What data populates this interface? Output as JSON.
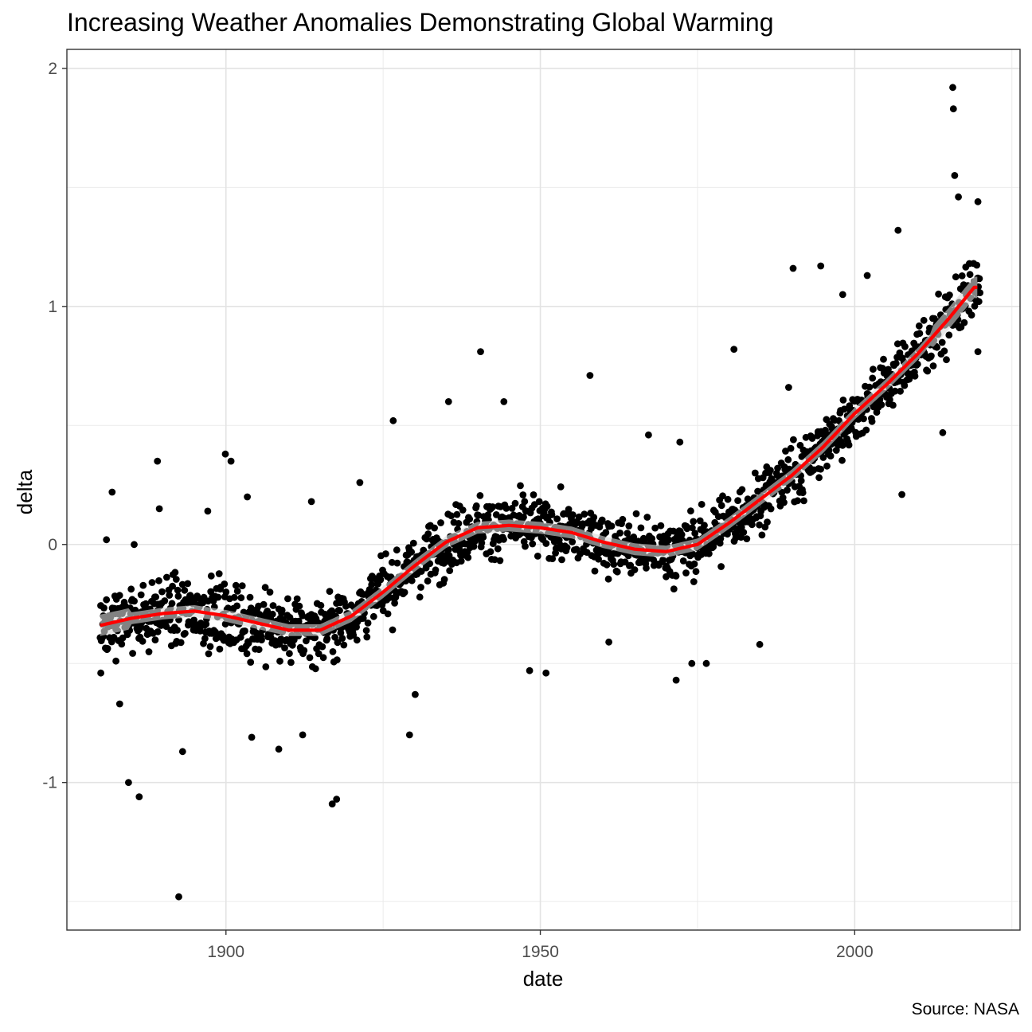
{
  "chart_data": {
    "type": "scatter",
    "title": "Increasing Weather Anomalies Demonstrating Global Warming",
    "xlabel": "date",
    "ylabel": "delta",
    "caption": "Source: NASA",
    "xlim": [
      1874.7,
      2026.3
    ],
    "ylim": [
      -1.62,
      2.08
    ],
    "x_ticks": [
      1900,
      1950,
      2000
    ],
    "x_tick_labels": [
      "1900",
      "1950",
      "2000"
    ],
    "y_ticks": [
      -1,
      0,
      1,
      2
    ],
    "y_tick_labels": [
      "-1",
      "0",
      "1",
      "2"
    ],
    "grid": true,
    "point_color": "#000000",
    "smooth_color": "#ff0000",
    "smooth_band_color": "#d9d9d9",
    "smooth_trend": {
      "x": [
        1880,
        1885,
        1890,
        1895,
        1900,
        1905,
        1910,
        1915,
        1920,
        1925,
        1930,
        1935,
        1940,
        1945,
        1950,
        1955,
        1960,
        1965,
        1970,
        1975,
        1980,
        1985,
        1990,
        1995,
        2000,
        2005,
        2010,
        2015,
        2019
      ],
      "y": [
        -0.34,
        -0.31,
        -0.29,
        -0.28,
        -0.3,
        -0.33,
        -0.36,
        -0.36,
        -0.3,
        -0.2,
        -0.09,
        0.01,
        0.07,
        0.08,
        0.07,
        0.05,
        0.01,
        -0.02,
        -0.03,
        0.0,
        0.09,
        0.19,
        0.29,
        0.41,
        0.55,
        0.67,
        0.8,
        0.95,
        1.08
      ]
    },
    "data_samples": [
      {
        "x": 1880.1,
        "y": -0.54
      },
      {
        "x": 1880.5,
        "y": -0.3
      },
      {
        "x": 1881.0,
        "y": 0.02
      },
      {
        "x": 1881.9,
        "y": 0.22
      },
      {
        "x": 1882.5,
        "y": -0.49
      },
      {
        "x": 1883.1,
        "y": -0.67
      },
      {
        "x": 1884.5,
        "y": -1.0
      },
      {
        "x": 1885.4,
        "y": 0.0
      },
      {
        "x": 1886.2,
        "y": -1.06
      },
      {
        "x": 1889.1,
        "y": 0.35
      },
      {
        "x": 1889.4,
        "y": 0.15
      },
      {
        "x": 1892.5,
        "y": -1.48
      },
      {
        "x": 1893.1,
        "y": -0.87
      },
      {
        "x": 1897.1,
        "y": 0.14
      },
      {
        "x": 1899.9,
        "y": 0.38
      },
      {
        "x": 1900.8,
        "y": 0.35
      },
      {
        "x": 1903.4,
        "y": 0.2
      },
      {
        "x": 1904.1,
        "y": -0.81
      },
      {
        "x": 1908.4,
        "y": -0.86
      },
      {
        "x": 1912.2,
        "y": -0.8
      },
      {
        "x": 1913.6,
        "y": 0.18
      },
      {
        "x": 1916.9,
        "y": -1.09
      },
      {
        "x": 1917.6,
        "y": -1.07
      },
      {
        "x": 1921.3,
        "y": 0.26
      },
      {
        "x": 1926.6,
        "y": 0.52
      },
      {
        "x": 1929.2,
        "y": -0.8
      },
      {
        "x": 1930.1,
        "y": -0.63
      },
      {
        "x": 1935.4,
        "y": 0.6
      },
      {
        "x": 1940.5,
        "y": 0.81
      },
      {
        "x": 1944.2,
        "y": 0.6
      },
      {
        "x": 1948.3,
        "y": -0.53
      },
      {
        "x": 1950.9,
        "y": -0.54
      },
      {
        "x": 1957.9,
        "y": 0.71
      },
      {
        "x": 1960.9,
        "y": -0.41
      },
      {
        "x": 1967.2,
        "y": 0.46
      },
      {
        "x": 1971.6,
        "y": -0.57
      },
      {
        "x": 1972.2,
        "y": 0.43
      },
      {
        "x": 1974.1,
        "y": -0.5
      },
      {
        "x": 1976.4,
        "y": -0.5
      },
      {
        "x": 1980.8,
        "y": 0.82
      },
      {
        "x": 1984.9,
        "y": -0.42
      },
      {
        "x": 1989.5,
        "y": 0.66
      },
      {
        "x": 1990.2,
        "y": 1.16
      },
      {
        "x": 1994.6,
        "y": 1.17
      },
      {
        "x": 1998.1,
        "y": 1.05
      },
      {
        "x": 2002.0,
        "y": 1.13
      },
      {
        "x": 2006.9,
        "y": 1.32
      },
      {
        "x": 2007.5,
        "y": 0.21
      },
      {
        "x": 2014.0,
        "y": 0.47
      },
      {
        "x": 2015.6,
        "y": 1.92
      },
      {
        "x": 2015.7,
        "y": 1.83
      },
      {
        "x": 2015.9,
        "y": 1.55
      },
      {
        "x": 2016.5,
        "y": 1.46
      },
      {
        "x": 2019.6,
        "y": 1.44
      },
      {
        "x": 2019.6,
        "y": 0.81
      }
    ]
  }
}
